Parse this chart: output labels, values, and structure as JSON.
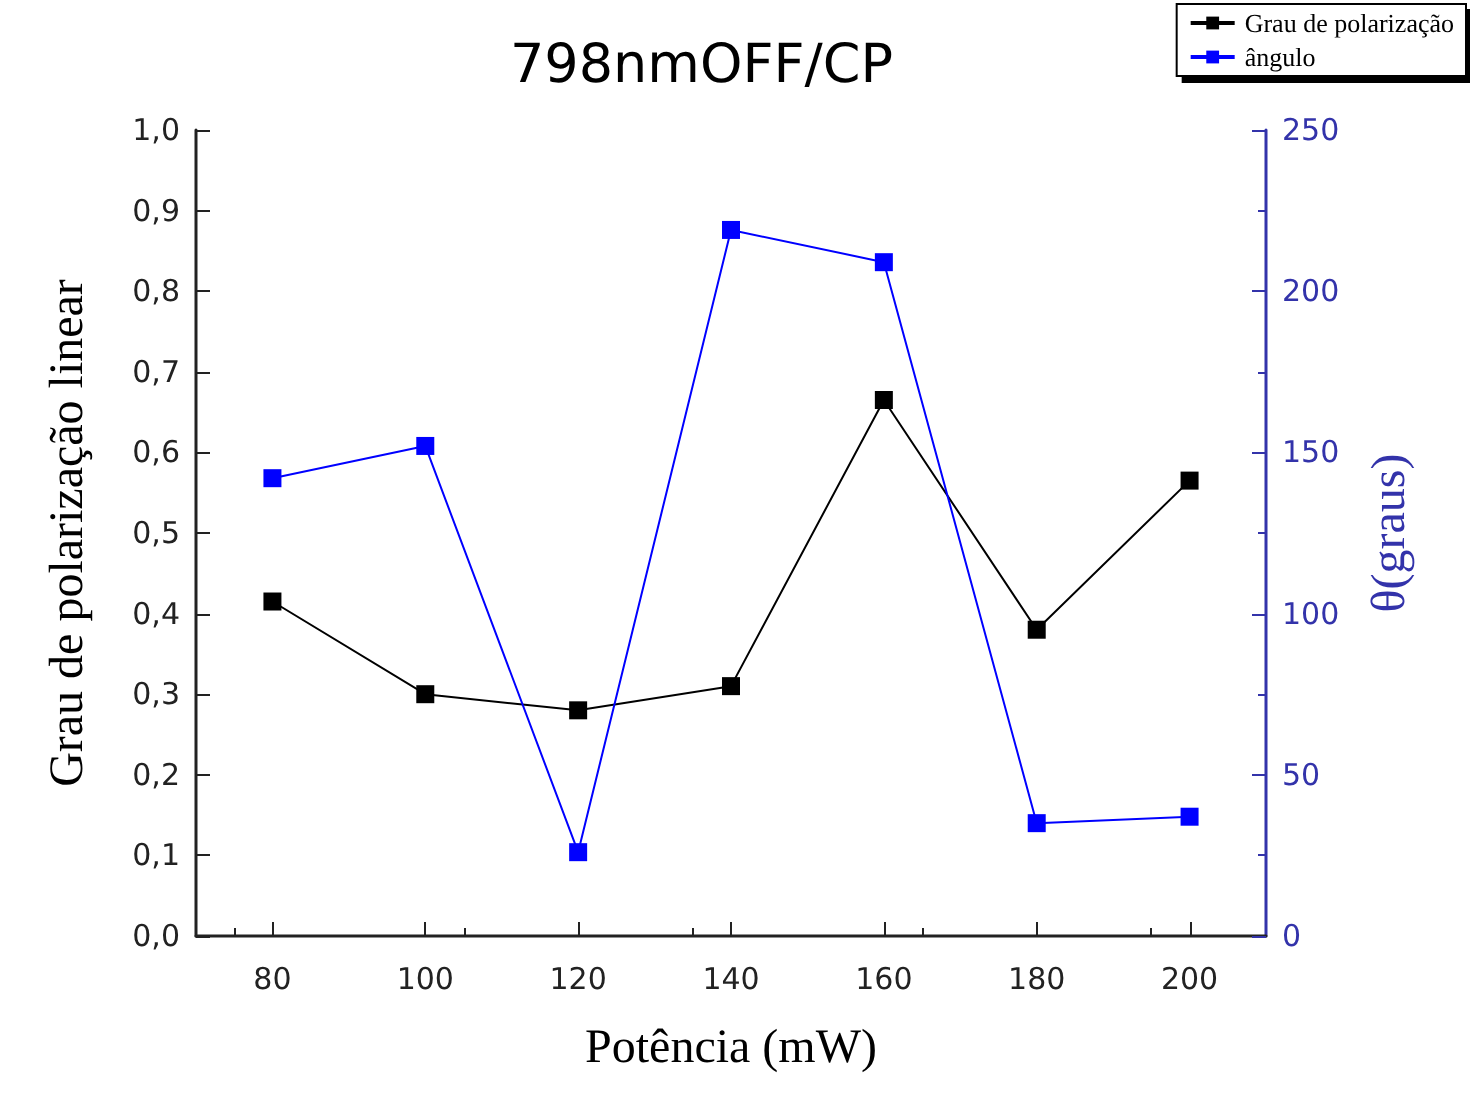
{
  "chart_data": {
    "type": "line",
    "title": "798nmOFF/CP",
    "xlabel": "Potência (mW)",
    "ylabel": "Grau de polarização linear",
    "y2label": "θ(graus)",
    "x": [
      80,
      100,
      120,
      140,
      160,
      180,
      200
    ],
    "series": [
      {
        "name": "Grau de polarização",
        "color": "#000000",
        "values": [
          0.415,
          0.3,
          0.28,
          0.31,
          0.665,
          0.38,
          0.565
        ]
      },
      {
        "name": "ângulo",
        "color": "#0000ff",
        "axis": "y2",
        "values": [
          142,
          152,
          26,
          219,
          209,
          35,
          37
        ]
      }
    ],
    "xlim": [
      70,
      210
    ],
    "xticks": [
      80,
      100,
      120,
      140,
      160,
      180,
      200
    ],
    "ylim": [
      0,
      1
    ],
    "yticks": [
      {
        "value": 0,
        "label": "0,0"
      },
      {
        "value": 0.1,
        "label": "0,1"
      },
      {
        "value": 0.2,
        "label": "0,2"
      },
      {
        "value": 0.3,
        "label": "0,3"
      },
      {
        "value": 0.4,
        "label": "0,4"
      },
      {
        "value": 0.5,
        "label": "0,5"
      },
      {
        "value": 0.6,
        "label": "0,6"
      },
      {
        "value": 0.7,
        "label": "0,7"
      },
      {
        "value": 0.8,
        "label": "0,8"
      },
      {
        "value": 0.9,
        "label": "0,9"
      },
      {
        "value": 1,
        "label": "1,0"
      }
    ],
    "y2lim": [
      0,
      250
    ],
    "y2ticks": [
      0,
      50,
      100,
      150,
      200,
      250
    ],
    "marker": "square",
    "line_style": "solid",
    "grid": false,
    "legend": "top right"
  }
}
